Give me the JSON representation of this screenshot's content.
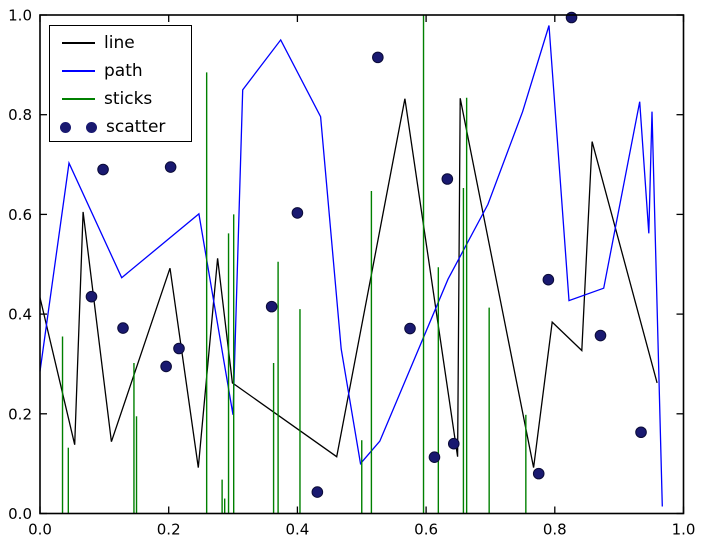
{
  "figure": {
    "background": "#ffffff",
    "axes_background": "#ffffff",
    "border_color": "#000000"
  },
  "legend": {
    "position": "upper left",
    "items": [
      {
        "label": "line",
        "type": "line",
        "color": "#000000"
      },
      {
        "label": "path",
        "type": "line",
        "color": "#0000ff"
      },
      {
        "label": "sticks",
        "type": "line",
        "color": "#008000"
      },
      {
        "label": "scatter",
        "type": "markers",
        "color": "#191970"
      }
    ]
  },
  "chart_data": {
    "type": "line",
    "title": "",
    "xlabel": "",
    "ylabel": "",
    "xlim": [
      0.0,
      1.0
    ],
    "ylim": [
      0.0,
      1.0
    ],
    "grid": false,
    "legend_position": "upper left",
    "x_ticks": [
      0.0,
      0.2,
      0.4,
      0.6,
      0.8,
      1.0
    ],
    "y_ticks": [
      0.0,
      0.2,
      0.4,
      0.6,
      0.8,
      1.0
    ],
    "x_tick_labels": [
      "0.0",
      "0.2",
      "0.4",
      "0.6",
      "0.8",
      "1.0"
    ],
    "y_tick_labels": [
      "0.0",
      "0.2",
      "0.4",
      "0.6",
      "0.8",
      "1.0"
    ],
    "series": [
      {
        "name": "line",
        "type": "line",
        "color": "#000000",
        "points": [
          [
            0.0,
            0.433
          ],
          [
            0.054,
            0.138
          ],
          [
            0.067,
            0.605
          ],
          [
            0.111,
            0.144
          ],
          [
            0.202,
            0.492
          ],
          [
            0.246,
            0.092
          ],
          [
            0.276,
            0.512
          ],
          [
            0.299,
            0.262
          ],
          [
            0.461,
            0.114
          ],
          [
            0.567,
            0.832
          ],
          [
            0.649,
            0.114
          ],
          [
            0.653,
            0.833
          ],
          [
            0.767,
            0.092
          ],
          [
            0.796,
            0.384
          ],
          [
            0.842,
            0.327
          ],
          [
            0.858,
            0.746
          ],
          [
            0.959,
            0.262
          ]
        ]
      },
      {
        "name": "path",
        "type": "line",
        "color": "#0000ff",
        "points": [
          [
            0.0,
            0.285
          ],
          [
            0.045,
            0.703
          ],
          [
            0.127,
            0.473
          ],
          [
            0.247,
            0.601
          ],
          [
            0.3,
            0.198
          ],
          [
            0.315,
            0.85
          ],
          [
            0.374,
            0.95
          ],
          [
            0.436,
            0.796
          ],
          [
            0.468,
            0.33
          ],
          [
            0.498,
            0.1
          ],
          [
            0.528,
            0.145
          ],
          [
            0.634,
            0.47
          ],
          [
            0.696,
            0.62
          ],
          [
            0.75,
            0.806
          ],
          [
            0.791,
            0.979
          ],
          [
            0.822,
            0.427
          ],
          [
            0.876,
            0.452
          ],
          [
            0.932,
            0.826
          ],
          [
            0.946,
            0.562
          ],
          [
            0.951,
            0.806
          ],
          [
            0.967,
            0.014
          ]
        ]
      },
      {
        "name": "sticks",
        "type": "sticks",
        "color": "#008000",
        "baseline": 0.0,
        "points": [
          [
            0.035,
            0.355
          ],
          [
            0.044,
            0.132
          ],
          [
            0.146,
            0.302
          ],
          [
            0.15,
            0.195
          ],
          [
            0.259,
            0.885
          ],
          [
            0.283,
            0.068
          ],
          [
            0.287,
            0.03
          ],
          [
            0.293,
            0.562
          ],
          [
            0.301,
            0.6
          ],
          [
            0.363,
            0.302
          ],
          [
            0.37,
            0.505
          ],
          [
            0.404,
            0.41
          ],
          [
            0.5,
            0.147
          ],
          [
            0.515,
            0.647
          ],
          [
            0.596,
            1.0
          ],
          [
            0.619,
            0.494
          ],
          [
            0.658,
            0.653
          ],
          [
            0.663,
            0.834
          ],
          [
            0.698,
            0.413
          ],
          [
            0.755,
            0.198
          ]
        ]
      },
      {
        "name": "scatter",
        "type": "scatter",
        "color": "#191970",
        "edge_color": "#0b0b38",
        "points": [
          [
            0.08,
            0.435
          ],
          [
            0.098,
            0.69
          ],
          [
            0.129,
            0.372
          ],
          [
            0.196,
            0.295
          ],
          [
            0.203,
            0.695
          ],
          [
            0.216,
            0.331
          ],
          [
            0.36,
            0.415
          ],
          [
            0.4,
            0.603
          ],
          [
            0.431,
            0.043
          ],
          [
            0.525,
            0.915
          ],
          [
            0.575,
            0.371
          ],
          [
            0.613,
            0.113
          ],
          [
            0.633,
            0.671
          ],
          [
            0.643,
            0.14
          ],
          [
            0.775,
            0.08
          ],
          [
            0.79,
            0.469
          ],
          [
            0.826,
            0.995
          ],
          [
            0.871,
            0.357
          ],
          [
            0.934,
            0.163
          ]
        ]
      }
    ]
  }
}
